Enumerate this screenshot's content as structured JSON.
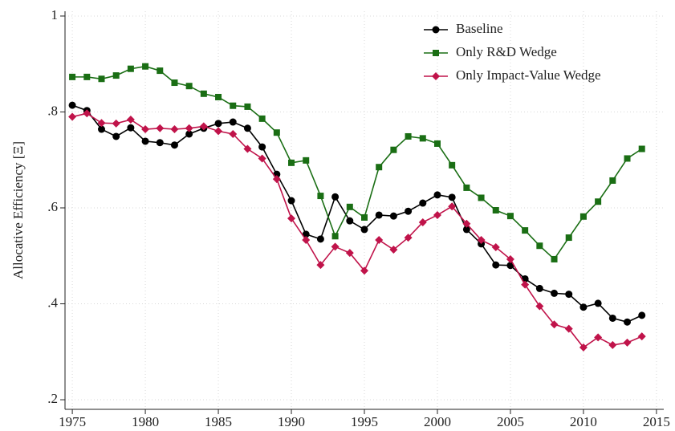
{
  "chart_data": {
    "type": "line",
    "y_label": "Allocative Efficiency [Ξ]",
    "x": [
      1975,
      1976,
      1977,
      1978,
      1979,
      1980,
      1981,
      1982,
      1983,
      1984,
      1985,
      1986,
      1987,
      1988,
      1989,
      1990,
      1991,
      1992,
      1993,
      1994,
      1995,
      1996,
      1997,
      1998,
      1999,
      2000,
      2001,
      2002,
      2003,
      2004,
      2005,
      2006,
      2007,
      2008,
      2009,
      2010,
      2011,
      2012,
      2013,
      2014
    ],
    "series": [
      {
        "name": "Baseline",
        "color": "#000000",
        "marker": "circle",
        "values": [
          0.814,
          0.803,
          0.764,
          0.749,
          0.767,
          0.739,
          0.736,
          0.731,
          0.754,
          0.766,
          0.776,
          0.779,
          0.766,
          0.727,
          0.67,
          0.615,
          0.545,
          0.535,
          0.623,
          0.573,
          0.555,
          0.585,
          0.583,
          0.593,
          0.61,
          0.627,
          0.622,
          0.555,
          0.525,
          0.481,
          0.48,
          0.452,
          0.432,
          0.422,
          0.42,
          0.393,
          0.401,
          0.37,
          0.362,
          0.376
        ]
      },
      {
        "name": "Only R&D Wedge",
        "color": "#1a6e14",
        "marker": "square",
        "values": [
          0.873,
          0.873,
          0.869,
          0.876,
          0.89,
          0.895,
          0.886,
          0.861,
          0.854,
          0.838,
          0.831,
          0.813,
          0.811,
          0.786,
          0.757,
          0.694,
          0.699,
          0.625,
          0.541,
          0.602,
          0.58,
          0.685,
          0.721,
          0.749,
          0.745,
          0.734,
          0.689,
          0.642,
          0.621,
          0.595,
          0.583,
          0.553,
          0.521,
          0.493,
          0.538,
          0.582,
          0.613,
          0.657,
          0.703,
          0.723
        ]
      },
      {
        "name": "Only Impact-Value Wedge",
        "color": "#c0134a",
        "marker": "diamond",
        "values": [
          0.79,
          0.797,
          0.777,
          0.776,
          0.784,
          0.764,
          0.766,
          0.764,
          0.766,
          0.77,
          0.76,
          0.754,
          0.723,
          0.703,
          0.66,
          0.578,
          0.533,
          0.481,
          0.519,
          0.506,
          0.469,
          0.533,
          0.513,
          0.538,
          0.57,
          0.585,
          0.603,
          0.567,
          0.533,
          0.518,
          0.493,
          0.44,
          0.395,
          0.357,
          0.348,
          0.309,
          0.33,
          0.314,
          0.319,
          0.332
        ]
      }
    ],
    "xlim": [
      1974.5,
      2015.5
    ],
    "xticks": [
      1975,
      1980,
      1985,
      1990,
      1995,
      2000,
      2005,
      2010,
      2015
    ],
    "ylim": [
      0.18,
      1.01
    ],
    "yticks": [
      {
        "value": 0.2,
        "label": ".2"
      },
      {
        "value": 0.4,
        "label": ".4"
      },
      {
        "value": 0.6,
        "label": ".6"
      },
      {
        "value": 0.8,
        "label": ".8"
      },
      1
    ],
    "grid": true,
    "legend": "upper-right"
  }
}
